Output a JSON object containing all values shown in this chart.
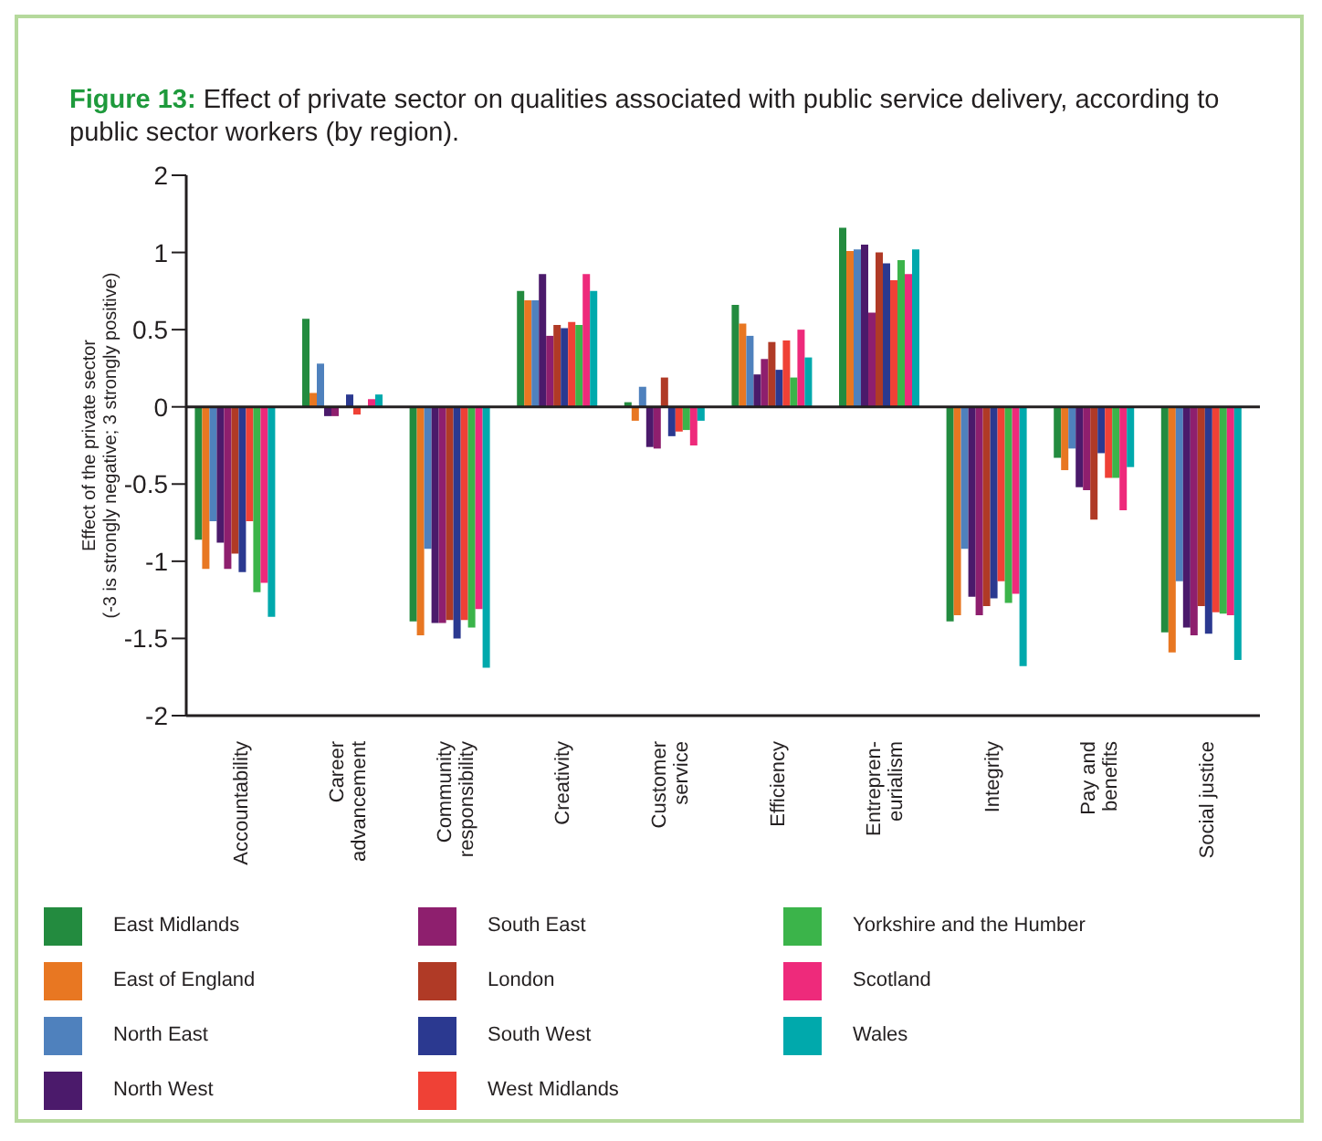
{
  "chart_data": {
    "type": "bar",
    "title": "Figure 13: Effect of private sector on qualities associated with public service delivery, according to public sector workers (by region).",
    "ylabel": "Effect of the private sector\n(-3 is strongly negative; 3 strongly positive)",
    "categories": [
      "Accountability",
      "Career\nadvancement",
      "Community\nresponsibility",
      "Creativity",
      "Customer\nservice",
      "Efficiency",
      "Entrepren-\neurialism",
      "Integrity",
      "Pay and\nbenefits",
      "Social justice"
    ],
    "series": [
      {
        "name": "East Midlands",
        "color": "#238b3f",
        "values": [
          -0.86,
          0.57,
          -1.39,
          0.75,
          0.03,
          0.66,
          1.16,
          -1.39,
          -0.33,
          -1.46
        ]
      },
      {
        "name": "East of England",
        "color": "#e87722",
        "values": [
          -1.05,
          0.09,
          -1.48,
          0.69,
          -0.09,
          0.54,
          1.01,
          -1.35,
          -0.41,
          -1.59
        ]
      },
      {
        "name": "North East",
        "color": "#4f81bd",
        "values": [
          -0.74,
          0.28,
          -0.92,
          0.69,
          0.13,
          0.46,
          1.02,
          -0.92,
          -0.27,
          -1.13
        ]
      },
      {
        "name": "North West",
        "color": "#4b1a6b",
        "values": [
          -0.88,
          -0.06,
          -1.4,
          0.86,
          -0.26,
          0.21,
          1.05,
          -1.23,
          -0.52,
          -1.43
        ]
      },
      {
        "name": "South East",
        "color": "#8e1f6e",
        "values": [
          -1.05,
          -0.06,
          -1.4,
          0.46,
          -0.27,
          0.31,
          0.61,
          -1.35,
          -0.54,
          -1.48
        ]
      },
      {
        "name": "London",
        "color": "#b03a26",
        "values": [
          -0.95,
          0,
          -1.38,
          0.53,
          0.19,
          0.42,
          1.0,
          -1.29,
          -0.73,
          -1.29
        ]
      },
      {
        "name": "South West",
        "color": "#2b3990",
        "values": [
          -1.07,
          0.08,
          -1.5,
          0.51,
          -0.19,
          0.24,
          0.93,
          -1.24,
          -0.3,
          -1.47
        ]
      },
      {
        "name": "West Midlands",
        "color": "#ef4136",
        "values": [
          -0.74,
          -0.05,
          -1.38,
          0.55,
          -0.16,
          0.43,
          0.82,
          -1.13,
          -0.46,
          -1.33
        ]
      },
      {
        "name": "Yorkshire and the Humber",
        "color": "#3bb44a",
        "values": [
          -1.2,
          0,
          -1.43,
          0.53,
          -0.15,
          0.19,
          0.95,
          -1.27,
          -0.46,
          -1.34
        ]
      },
      {
        "name": "Scotland",
        "color": "#ee2a7b",
        "values": [
          -1.14,
          0.05,
          -1.31,
          0.86,
          -0.25,
          0.5,
          0.86,
          -1.21,
          -0.67,
          -1.35
        ]
      },
      {
        "name": "Wales",
        "color": "#00a9ac",
        "values": [
          -1.36,
          0.08,
          -1.69,
          0.75,
          -0.09,
          0.32,
          1.02,
          -1.68,
          -0.39,
          -1.64
        ]
      }
    ],
    "ylim": [
      -2,
      1.5
    ],
    "yticks": [
      -2,
      -1.5,
      -1,
      -0.5,
      0,
      0.5,
      1,
      {
        "value": 1.5,
        "label": "2"
      }
    ],
    "ref_lines": [
      {
        "axis": "y",
        "value": 0,
        "color": "#231f20"
      }
    ],
    "grid": false,
    "legend": "bottom"
  }
}
